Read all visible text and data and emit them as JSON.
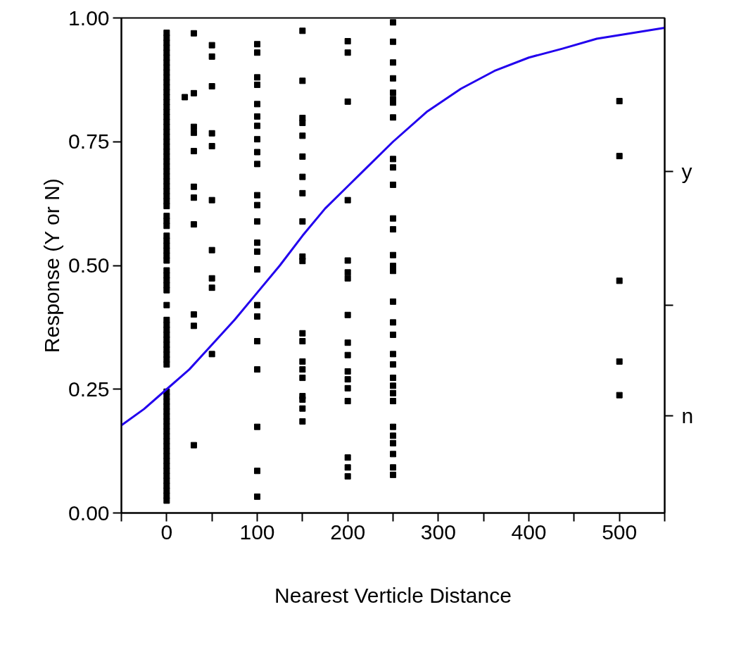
{
  "chart_data": {
    "type": "scatter",
    "xlabel": "Nearest Verticle Distance",
    "ylabel": "Response (Y or N)",
    "xlim": [
      -50,
      550
    ],
    "ylim": [
      0,
      1
    ],
    "xticks": [
      {
        "value": -50,
        "label": null
      },
      0,
      {
        "value": 50,
        "label": null
      },
      100,
      {
        "value": 150,
        "label": null
      },
      200,
      {
        "value": 250,
        "label": null
      },
      300,
      {
        "value": 350,
        "label": null
      },
      400,
      {
        "value": 450,
        "label": null
      },
      500,
      {
        "value": 550,
        "label": null
      }
    ],
    "yticks": [
      {
        "value": 0,
        "label": "0.00"
      },
      {
        "value": 0.25,
        "label": "0.25"
      },
      {
        "value": 0.5,
        "label": "0.50"
      },
      {
        "value": 0.75,
        "label": "0.75"
      },
      {
        "value": 1,
        "label": "1.00"
      }
    ],
    "annotations": [
      "y",
      "n"
    ],
    "grid": false,
    "marker": "square",
    "series": [
      {
        "color": "#000000",
        "x": [
          0,
          0,
          0,
          0,
          0,
          0,
          0,
          0,
          0,
          0,
          0,
          0,
          0,
          0,
          0,
          0,
          0,
          0,
          0,
          0,
          0,
          0,
          0,
          0,
          0,
          0,
          0,
          0,
          0,
          0,
          0,
          0,
          0,
          0,
          0,
          0,
          0,
          0,
          0,
          0,
          0,
          0,
          0,
          0,
          0,
          0,
          0,
          0,
          0,
          0,
          0,
          0,
          0,
          0,
          0,
          0,
          0,
          0,
          0,
          0,
          0,
          0,
          0,
          0,
          0,
          0,
          0,
          0,
          0,
          0,
          0,
          0,
          0,
          0,
          0,
          0,
          0,
          0,
          0,
          0,
          0,
          0,
          0,
          0
        ],
        "values": [
          0.025,
          0.035,
          0.045,
          0.055,
          0.065,
          0.075,
          0.085,
          0.095,
          0.105,
          0.115,
          0.125,
          0.135,
          0.145,
          0.155,
          0.165,
          0.175,
          0.185,
          0.195,
          0.205,
          0.215,
          0.225,
          0.235,
          0.245,
          0.3,
          0.31,
          0.32,
          0.33,
          0.34,
          0.35,
          0.36,
          0.37,
          0.38,
          0.39,
          0.42,
          0.45,
          0.46,
          0.47,
          0.48,
          0.49,
          0.51,
          0.52,
          0.53,
          0.54,
          0.55,
          0.56,
          0.58,
          0.59,
          0.6,
          0.62,
          0.63,
          0.64,
          0.65,
          0.66,
          0.67,
          0.68,
          0.69,
          0.7,
          0.71,
          0.72,
          0.73,
          0.74,
          0.75,
          0.76,
          0.77,
          0.78,
          0.79,
          0.8,
          0.81,
          0.82,
          0.83,
          0.84,
          0.85,
          0.86,
          0.87,
          0.88,
          0.89,
          0.9,
          0.91,
          0.92,
          0.93,
          0.94,
          0.95,
          0.96,
          0.97
        ]
      },
      {
        "color": "#000000",
        "x": [
          20,
          30,
          30,
          30,
          30,
          30,
          30,
          30,
          30,
          30,
          30,
          30,
          50,
          50,
          50,
          50,
          50,
          50,
          50,
          50,
          50,
          50
        ],
        "values": [
          0.84,
          0.969,
          0.848,
          0.78,
          0.768,
          0.731,
          0.659,
          0.637,
          0.583,
          0.401,
          0.378,
          0.137,
          0.945,
          0.922,
          0.862,
          0.767,
          0.741,
          0.632,
          0.531,
          0.474,
          0.455,
          0.321
        ]
      },
      {
        "color": "#000000",
        "x": [
          100,
          100,
          100,
          100,
          100,
          100,
          100,
          100,
          100,
          100,
          100,
          100,
          100,
          100,
          100,
          100,
          100,
          100,
          100,
          100,
          100,
          100,
          100
        ],
        "values": [
          0.947,
          0.93,
          0.88,
          0.865,
          0.826,
          0.801,
          0.782,
          0.755,
          0.729,
          0.705,
          0.642,
          0.622,
          0.589,
          0.546,
          0.528,
          0.492,
          0.42,
          0.397,
          0.347,
          0.29,
          0.174,
          0.085,
          0.033
        ]
      },
      {
        "color": "#000000",
        "x": [
          150,
          150,
          150,
          150,
          150,
          150,
          150,
          150,
          150,
          150,
          150,
          150,
          150,
          150,
          150,
          150,
          150,
          150,
          150,
          150
        ],
        "values": [
          0.974,
          0.873,
          0.798,
          0.788,
          0.762,
          0.72,
          0.679,
          0.646,
          0.589,
          0.518,
          0.509,
          0.363,
          0.347,
          0.306,
          0.29,
          0.273,
          0.236,
          0.229,
          0.211,
          0.185
        ]
      },
      {
        "color": "#000000",
        "x": [
          200,
          200,
          200,
          200,
          200,
          200,
          200,
          200,
          200,
          200,
          200,
          200,
          200,
          200,
          200,
          200,
          200
        ],
        "values": [
          0.953,
          0.93,
          0.831,
          0.632,
          0.51,
          0.486,
          0.474,
          0.4,
          0.344,
          0.319,
          0.286,
          0.27,
          0.252,
          0.226,
          0.112,
          0.092,
          0.074
        ]
      },
      {
        "color": "#000000",
        "x": [
          250,
          250,
          250,
          250,
          250,
          250,
          250,
          250,
          250,
          250,
          250,
          250,
          250,
          250,
          250,
          250,
          250,
          250,
          250,
          250,
          250,
          250,
          250,
          250,
          250,
          250,
          250,
          250,
          250,
          250,
          250
        ],
        "values": [
          0.991,
          0.952,
          0.91,
          0.878,
          0.849,
          0.836,
          0.829,
          0.799,
          0.715,
          0.698,
          0.663,
          0.595,
          0.573,
          0.521,
          0.499,
          0.489,
          0.427,
          0.385,
          0.36,
          0.321,
          0.3,
          0.273,
          0.257,
          0.242,
          0.226,
          0.174,
          0.156,
          0.141,
          0.119,
          0.092,
          0.077
        ]
      },
      {
        "color": "#000000",
        "x": [
          500,
          500,
          500,
          500,
          500
        ],
        "values": [
          0.832,
          0.721,
          0.469,
          0.306,
          0.238
        ]
      },
      {
        "type": "line",
        "color": "#2200ee",
        "marker": "none",
        "x": [
          -50,
          -25,
          0,
          25,
          50,
          75,
          100,
          125,
          150,
          175,
          200,
          225,
          250,
          287,
          325,
          362,
          400,
          437,
          475,
          550
        ],
        "values": [
          0.177,
          0.21,
          0.25,
          0.29,
          0.34,
          0.39,
          0.445,
          0.5,
          0.56,
          0.615,
          0.66,
          0.705,
          0.75,
          0.81,
          0.857,
          0.893,
          0.92,
          0.938,
          0.958,
          0.98
        ]
      }
    ]
  }
}
